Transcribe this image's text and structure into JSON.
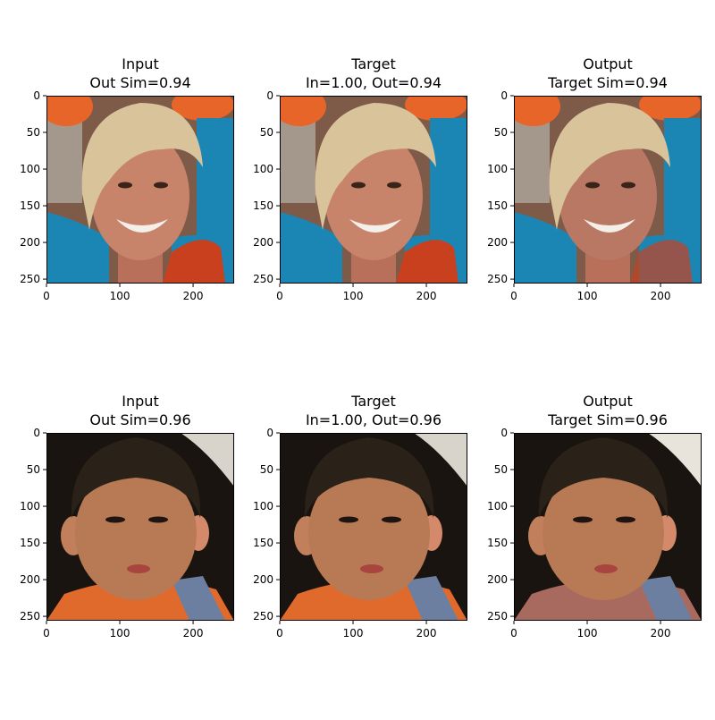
{
  "figure": {
    "title": "",
    "palette": {
      "background": "#ffffff",
      "face_skin": "#c8846a",
      "hair_blonde": "#d9c39a",
      "shirt_blue": "#1b86b4",
      "crowd_orange": "#e8652a",
      "beads_orange": "#c9401f",
      "child_skin": "#b77a55",
      "child_hair": "#2a2118",
      "scarf_orange": "#e06a2c",
      "dark_bg": "#1a1410"
    }
  },
  "chart_data": [
    {
      "type": "image",
      "title_line1": "Input",
      "title_line2": "Out Sim=0.94",
      "subject": "smiling-woman",
      "xlim": [
        0,
        256
      ],
      "ylim": [
        256,
        0
      ],
      "xticks": [
        0,
        100,
        200
      ],
      "xtick_labels": [
        "0",
        "100",
        "200"
      ],
      "yticks": [
        0,
        50,
        100,
        150,
        200,
        250
      ],
      "ytick_labels": [
        "0",
        "50",
        "100",
        "150",
        "200",
        "250"
      ]
    },
    {
      "type": "image",
      "title_line1": "Target",
      "title_line2": "In=1.00, Out=0.94",
      "subject": "smiling-woman",
      "xlim": [
        0,
        256
      ],
      "ylim": [
        256,
        0
      ],
      "xticks": [
        0,
        100,
        200
      ],
      "xtick_labels": [
        "0",
        "100",
        "200"
      ],
      "yticks": [
        0,
        50,
        100,
        150,
        200,
        250
      ],
      "ytick_labels": [
        "0",
        "50",
        "100",
        "150",
        "200",
        "250"
      ]
    },
    {
      "type": "image",
      "title_line1": "Output",
      "title_line2": "Target Sim=0.94",
      "subject": "smiling-woman",
      "xlim": [
        0,
        256
      ],
      "ylim": [
        256,
        0
      ],
      "xticks": [
        0,
        100,
        200
      ],
      "xtick_labels": [
        "0",
        "100",
        "200"
      ],
      "yticks": [
        0,
        50,
        100,
        150,
        200,
        250
      ],
      "ytick_labels": [
        "0",
        "50",
        "100",
        "150",
        "200",
        "250"
      ]
    },
    {
      "type": "image",
      "title_line1": "Input",
      "title_line2": "Out Sim=0.96",
      "subject": "young-boy",
      "xlim": [
        0,
        256
      ],
      "ylim": [
        256,
        0
      ],
      "xticks": [
        0,
        100,
        200
      ],
      "xtick_labels": [
        "0",
        "100",
        "200"
      ],
      "yticks": [
        0,
        50,
        100,
        150,
        200,
        250
      ],
      "ytick_labels": [
        "0",
        "50",
        "100",
        "150",
        "200",
        "250"
      ]
    },
    {
      "type": "image",
      "title_line1": "Target",
      "title_line2": "In=1.00, Out=0.96",
      "subject": "young-boy",
      "xlim": [
        0,
        256
      ],
      "ylim": [
        256,
        0
      ],
      "xticks": [
        0,
        100,
        200
      ],
      "xtick_labels": [
        "0",
        "100",
        "200"
      ],
      "yticks": [
        0,
        50,
        100,
        150,
        200,
        250
      ],
      "ytick_labels": [
        "0",
        "50",
        "100",
        "150",
        "200",
        "250"
      ]
    },
    {
      "type": "image",
      "title_line1": "Output",
      "title_line2": "Target Sim=0.96",
      "subject": "young-boy",
      "xlim": [
        0,
        256
      ],
      "ylim": [
        256,
        0
      ],
      "xticks": [
        0,
        100,
        200
      ],
      "xtick_labels": [
        "0",
        "100",
        "200"
      ],
      "yticks": [
        0,
        50,
        100,
        150,
        200,
        250
      ],
      "ytick_labels": [
        "0",
        "50",
        "100",
        "150",
        "200",
        "250"
      ]
    }
  ]
}
